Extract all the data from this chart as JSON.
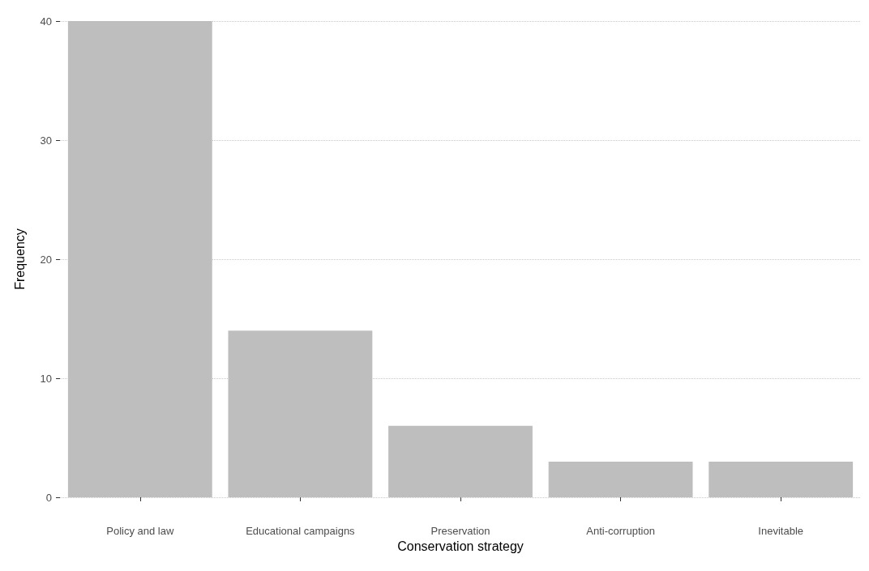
{
  "chart_data": {
    "type": "bar",
    "xlabel": "Conservation strategy",
    "ylabel": "Frequency",
    "categories": [
      "Policy and law",
      "Educational campaigns",
      "Preservation",
      "Anti-corruption",
      "Inevitable"
    ],
    "values": [
      40,
      14,
      6,
      3,
      3
    ],
    "color": "#bebebe",
    "ylim": [
      0,
      40
    ],
    "yticks": [
      0,
      10,
      20,
      30,
      40
    ],
    "grid": "y"
  }
}
